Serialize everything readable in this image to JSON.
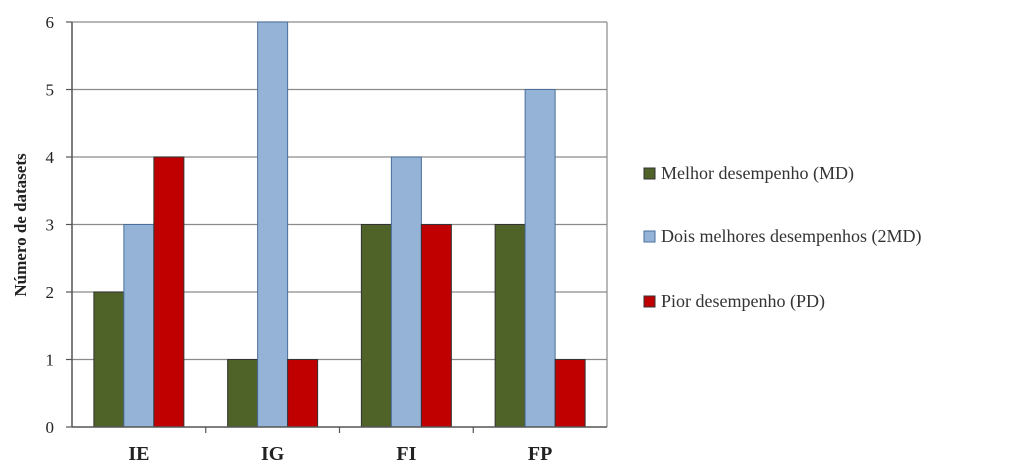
{
  "chart_data": {
    "type": "bar",
    "title": "",
    "xlabel": "",
    "ylabel": "Número de datasets",
    "categories": [
      "IE",
      "IG",
      "FI",
      "FP"
    ],
    "ylim": [
      0,
      6
    ],
    "yticks": [
      "0",
      "1",
      "2",
      "3",
      "4",
      "5",
      "6"
    ],
    "grid": true,
    "legend_position": "right",
    "series": [
      {
        "name": "Melhor desempenho (MD)",
        "color": "#4f6228",
        "values": [
          2,
          1,
          3,
          3
        ]
      },
      {
        "name": "Dois melhores desempenhos (2MD)",
        "color": "#95b3d7",
        "values": [
          3,
          6,
          4,
          5
        ]
      },
      {
        "name": "Pior desempenho (PD)",
        "color": "#c00000",
        "values": [
          4,
          1,
          3,
          1
        ]
      }
    ]
  }
}
